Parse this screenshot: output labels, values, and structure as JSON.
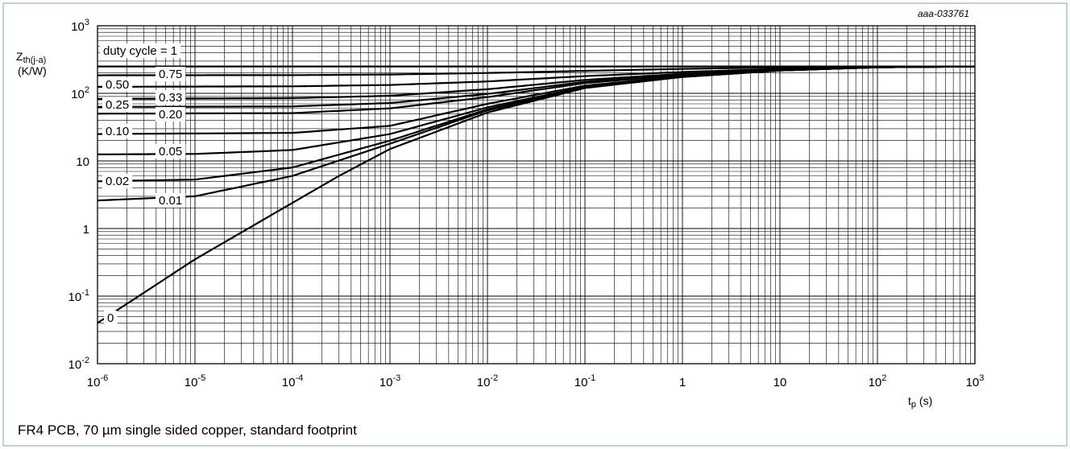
{
  "frame": {
    "border_color": "#bcd2de"
  },
  "figure_id": "aaa-033761",
  "caption": "FR4 PCB, 70 µm single sided copper, standard footprint",
  "y_axis_label": {
    "symbol": "Z",
    "subscript": "th(j-a)",
    "unit": "(K/W)"
  },
  "x_axis_label": {
    "symbol": "t",
    "subscript": "p",
    "unit": "(s)"
  },
  "y_tick_labels": [
    {
      "value": 1000,
      "base": "10",
      "exp": "3"
    },
    {
      "value": 100,
      "base": "10",
      "exp": "2"
    },
    {
      "value": 10,
      "base": "10",
      "exp": ""
    },
    {
      "value": 1,
      "base": "1",
      "exp": ""
    },
    {
      "value": 0.1,
      "base": "10",
      "exp": "-1"
    },
    {
      "value": 0.01,
      "base": "10",
      "exp": "-2"
    }
  ],
  "x_tick_labels": [
    {
      "value": 1e-06,
      "base": "10",
      "exp": "-6"
    },
    {
      "value": 1e-05,
      "base": "10",
      "exp": "-5"
    },
    {
      "value": 0.0001,
      "base": "10",
      "exp": "-4"
    },
    {
      "value": 0.001,
      "base": "10",
      "exp": "-3"
    },
    {
      "value": 0.01,
      "base": "10",
      "exp": "-2"
    },
    {
      "value": 0.1,
      "base": "10",
      "exp": "-1"
    },
    {
      "value": 1,
      "base": "1",
      "exp": ""
    },
    {
      "value": 10,
      "base": "10",
      "exp": ""
    },
    {
      "value": 100,
      "base": "10",
      "exp": "2"
    },
    {
      "value": 1000,
      "base": "10",
      "exp": "3"
    }
  ],
  "chart_data": {
    "type": "line",
    "x_scale": "log",
    "y_scale": "log",
    "xlim": [
      1e-06,
      1000
    ],
    "ylim": [
      0.01,
      1000
    ],
    "grid": true,
    "legend": "none",
    "series": [
      {
        "name": "duty cycle = 1",
        "points": [
          [
            1e-06,
            250
          ],
          [
            0.001,
            250
          ],
          [
            1,
            250
          ],
          [
            1000,
            250
          ]
        ]
      },
      {
        "name": "0.75",
        "points": [
          [
            1e-06,
            185
          ],
          [
            0.0001,
            186
          ],
          [
            0.001,
            190
          ],
          [
            0.01,
            200
          ],
          [
            0.1,
            215
          ],
          [
            1,
            230
          ],
          [
            10,
            242
          ],
          [
            100,
            248
          ],
          [
            1000,
            250
          ]
        ]
      },
      {
        "name": "0.50",
        "points": [
          [
            1e-06,
            125
          ],
          [
            0.0001,
            127
          ],
          [
            0.001,
            133
          ],
          [
            0.01,
            150
          ],
          [
            0.1,
            180
          ],
          [
            1,
            207
          ],
          [
            10,
            230
          ],
          [
            100,
            246
          ],
          [
            1000,
            250
          ]
        ]
      },
      {
        "name": "0.33",
        "points": [
          [
            1e-06,
            83
          ],
          [
            0.0001,
            85
          ],
          [
            0.001,
            92
          ],
          [
            0.01,
            115
          ],
          [
            0.1,
            158
          ],
          [
            1,
            195
          ],
          [
            10,
            225
          ],
          [
            100,
            245
          ],
          [
            1000,
            250
          ]
        ]
      },
      {
        "name": "0.25",
        "points": [
          [
            1e-06,
            63
          ],
          [
            0.0001,
            64
          ],
          [
            0.001,
            72
          ],
          [
            0.01,
            98
          ],
          [
            0.1,
            148
          ],
          [
            1,
            190
          ],
          [
            10,
            223
          ],
          [
            100,
            244
          ],
          [
            1000,
            250
          ]
        ]
      },
      {
        "name": "0.20",
        "points": [
          [
            1e-06,
            50
          ],
          [
            0.0001,
            51
          ],
          [
            0.001,
            60
          ],
          [
            0.01,
            88
          ],
          [
            0.1,
            142
          ],
          [
            1,
            187
          ],
          [
            10,
            222
          ],
          [
            100,
            244
          ],
          [
            1000,
            250
          ]
        ]
      },
      {
        "name": "0.10",
        "points": [
          [
            1e-06,
            25
          ],
          [
            0.0001,
            26
          ],
          [
            0.001,
            33
          ],
          [
            0.01,
            70
          ],
          [
            0.1,
            130
          ],
          [
            1,
            180
          ],
          [
            10,
            220
          ],
          [
            100,
            243
          ],
          [
            1000,
            250
          ]
        ]
      },
      {
        "name": "0.05",
        "points": [
          [
            1e-06,
            12.5
          ],
          [
            1e-05,
            12.7
          ],
          [
            0.0001,
            14.5
          ],
          [
            0.001,
            25
          ],
          [
            0.01,
            62
          ],
          [
            0.1,
            125
          ],
          [
            1,
            178
          ],
          [
            10,
            219
          ],
          [
            100,
            243
          ],
          [
            1000,
            250
          ]
        ]
      },
      {
        "name": "0.02",
        "points": [
          [
            1e-06,
            5
          ],
          [
            1e-05,
            5.3
          ],
          [
            0.0001,
            8
          ],
          [
            0.001,
            20
          ],
          [
            0.01,
            58
          ],
          [
            0.1,
            122
          ],
          [
            1,
            176
          ],
          [
            10,
            218
          ],
          [
            100,
            243
          ],
          [
            1000,
            250
          ]
        ]
      },
      {
        "name": "0.01",
        "points": [
          [
            1e-06,
            2.6
          ],
          [
            1e-05,
            3
          ],
          [
            0.0001,
            6
          ],
          [
            0.001,
            18
          ],
          [
            0.01,
            56
          ],
          [
            0.1,
            121
          ],
          [
            1,
            175
          ],
          [
            10,
            218
          ],
          [
            100,
            243
          ],
          [
            1000,
            250
          ]
        ]
      },
      {
        "name": "0",
        "points": [
          [
            1e-06,
            0.04
          ],
          [
            1e-05,
            0.35
          ],
          [
            0.0001,
            2.4
          ],
          [
            0.0003,
            6
          ],
          [
            0.001,
            15
          ],
          [
            0.01,
            52
          ],
          [
            0.1,
            120
          ],
          [
            1,
            175
          ],
          [
            10,
            218
          ],
          [
            100,
            243
          ],
          [
            1000,
            250
          ]
        ]
      }
    ]
  }
}
